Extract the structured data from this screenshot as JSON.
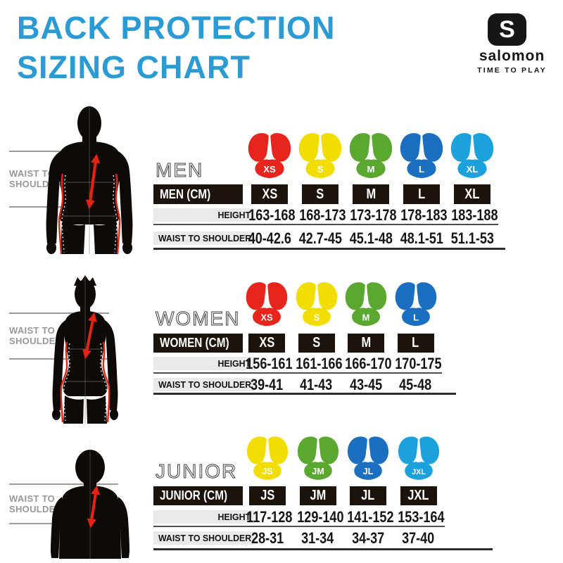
{
  "header": {
    "title_line1": "BACK PROTECTION",
    "title_line2": "SIZING CHART",
    "title_color": "#2b9bd6",
    "brand_monogram": "S",
    "brand": "salomon",
    "tagline": "TIME TO PLAY"
  },
  "measure_label": {
    "line1": "WAIST TO",
    "line2": "SHOULDER"
  },
  "row_headers": {
    "height": "HEIGHT",
    "waist_to_shoulder": "WAIST TO SHOULDER"
  },
  "colors": {
    "red": "#e8251c",
    "yellow": "#f2dd00",
    "green": "#5aa82f",
    "dark_blue": "#1b6fc0",
    "light_blue": "#1ba1dc",
    "arrow_red": "#e42313",
    "table_bar_black": "#1c130d"
  },
  "sections": [
    {
      "id": "men",
      "heading": "MEN",
      "table_label": "MEN (CM)",
      "columns": [
        {
          "size": "XS",
          "color": "#e8251c",
          "height": "163-168",
          "waist_to_shoulder": "40-42.6"
        },
        {
          "size": "S",
          "color": "#f2dd00",
          "height": "168-173",
          "waist_to_shoulder": "42.7-45"
        },
        {
          "size": "M",
          "color": "#5aa82f",
          "height": "173-178",
          "waist_to_shoulder": "45.1-48"
        },
        {
          "size": "L",
          "color": "#1b6fc0",
          "height": "178-183",
          "waist_to_shoulder": "48.1-51"
        },
        {
          "size": "XL",
          "color": "#1ba1dc",
          "height": "183-188",
          "waist_to_shoulder": "51.1-53"
        }
      ]
    },
    {
      "id": "women",
      "heading": "WOMEN",
      "table_label": "WOMEN (CM)",
      "columns": [
        {
          "size": "XS",
          "color": "#e8251c",
          "height": "156-161",
          "waist_to_shoulder": "39-41"
        },
        {
          "size": "S",
          "color": "#f2dd00",
          "height": "161-166",
          "waist_to_shoulder": "41-43"
        },
        {
          "size": "M",
          "color": "#5aa82f",
          "height": "166-170",
          "waist_to_shoulder": "43-45"
        },
        {
          "size": "L",
          "color": "#1b6fc0",
          "height": "170-175",
          "waist_to_shoulder": "45-48"
        }
      ]
    },
    {
      "id": "junior",
      "heading": "JUNIOR",
      "table_label": "JUNIOR (CM)",
      "columns": [
        {
          "size": "JS",
          "color": "#f2dd00",
          "height": "117-128",
          "waist_to_shoulder": "28-31"
        },
        {
          "size": "JM",
          "color": "#5aa82f",
          "height": "129-140",
          "waist_to_shoulder": "31-34"
        },
        {
          "size": "JL",
          "color": "#1b6fc0",
          "height": "141-152",
          "waist_to_shoulder": "34-37"
        },
        {
          "size": "JXL",
          "color": "#1ba1dc",
          "height": "153-164",
          "waist_to_shoulder": "37-40"
        }
      ]
    }
  ],
  "chart_data": [
    {
      "type": "table",
      "title": "MEN (CM)",
      "columns": [
        "XS",
        "S",
        "M",
        "L",
        "XL"
      ],
      "rows": [
        {
          "label": "HEIGHT",
          "values": [
            "163-168",
            "168-173",
            "173-178",
            "178-183",
            "183-188"
          ]
        },
        {
          "label": "WAIST TO SHOULDER",
          "values": [
            "40-42.6",
            "42.7-45",
            "45.1-48",
            "48.1-51",
            "51.1-53"
          ]
        }
      ]
    },
    {
      "type": "table",
      "title": "WOMEN (CM)",
      "columns": [
        "XS",
        "S",
        "M",
        "L"
      ],
      "rows": [
        {
          "label": "HEIGHT",
          "values": [
            "156-161",
            "161-166",
            "166-170",
            "170-175"
          ]
        },
        {
          "label": "WAIST TO SHOULDER",
          "values": [
            "39-41",
            "41-43",
            "43-45",
            "45-48"
          ]
        }
      ]
    },
    {
      "type": "table",
      "title": "JUNIOR (CM)",
      "columns": [
        "JS",
        "JM",
        "JL",
        "JXL"
      ],
      "rows": [
        {
          "label": "HEIGHT",
          "values": [
            "117-128",
            "129-140",
            "141-152",
            "153-164"
          ]
        },
        {
          "label": "WAIST TO SHOULDER",
          "values": [
            "28-31",
            "31-34",
            "34-37",
            "37-40"
          ]
        }
      ]
    }
  ]
}
